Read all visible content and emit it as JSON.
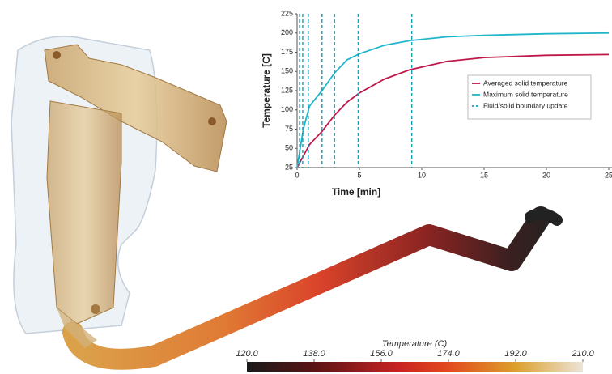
{
  "chart_data": {
    "type": "line",
    "x_label": "Time [min]",
    "y_label": "Temperature [C]",
    "xlim": [
      0,
      25
    ],
    "xticks": [
      0,
      5,
      10,
      15,
      20,
      25
    ],
    "ylim": [
      25,
      225
    ],
    "yticks": [
      25,
      50,
      75,
      100,
      125,
      150,
      175,
      200,
      225
    ],
    "grid": false,
    "legend": "center-right",
    "x": [
      0,
      0.5,
      1,
      2,
      3,
      4,
      5,
      7,
      9,
      12,
      15,
      20,
      25
    ],
    "series": [
      {
        "name": "Averaged solid temperature",
        "color": "#c0174a",
        "values": [
          25,
          40,
          55,
          72,
          93,
          110,
          122,
          140,
          152,
          163,
          168,
          171,
          172
        ]
      },
      {
        "name": "Maximum solid temperature",
        "color": "#1fb5c9",
        "values": [
          25,
          75,
          105,
          125,
          148,
          165,
          173,
          184,
          190,
          195,
          197,
          199,
          200
        ]
      },
      {
        "name": "Fluid/solid boundary update",
        "color": "#1a9fb5",
        "style": "dashed-vertical",
        "x": [
          0.2,
          0.45,
          0.9,
          2,
          3,
          4.9,
          9.2
        ]
      }
    ]
  },
  "colorbar": {
    "title": "Temperature (C)",
    "range": [
      120,
      210
    ],
    "ticks": [
      {
        "value": 120,
        "label": "120.0"
      },
      {
        "value": 138,
        "label": "138.0"
      },
      {
        "value": 156,
        "label": "156.0"
      },
      {
        "value": 174,
        "label": "174.0"
      },
      {
        "value": 192,
        "label": "192.0"
      },
      {
        "value": 210,
        "label": "210.0"
      }
    ]
  }
}
